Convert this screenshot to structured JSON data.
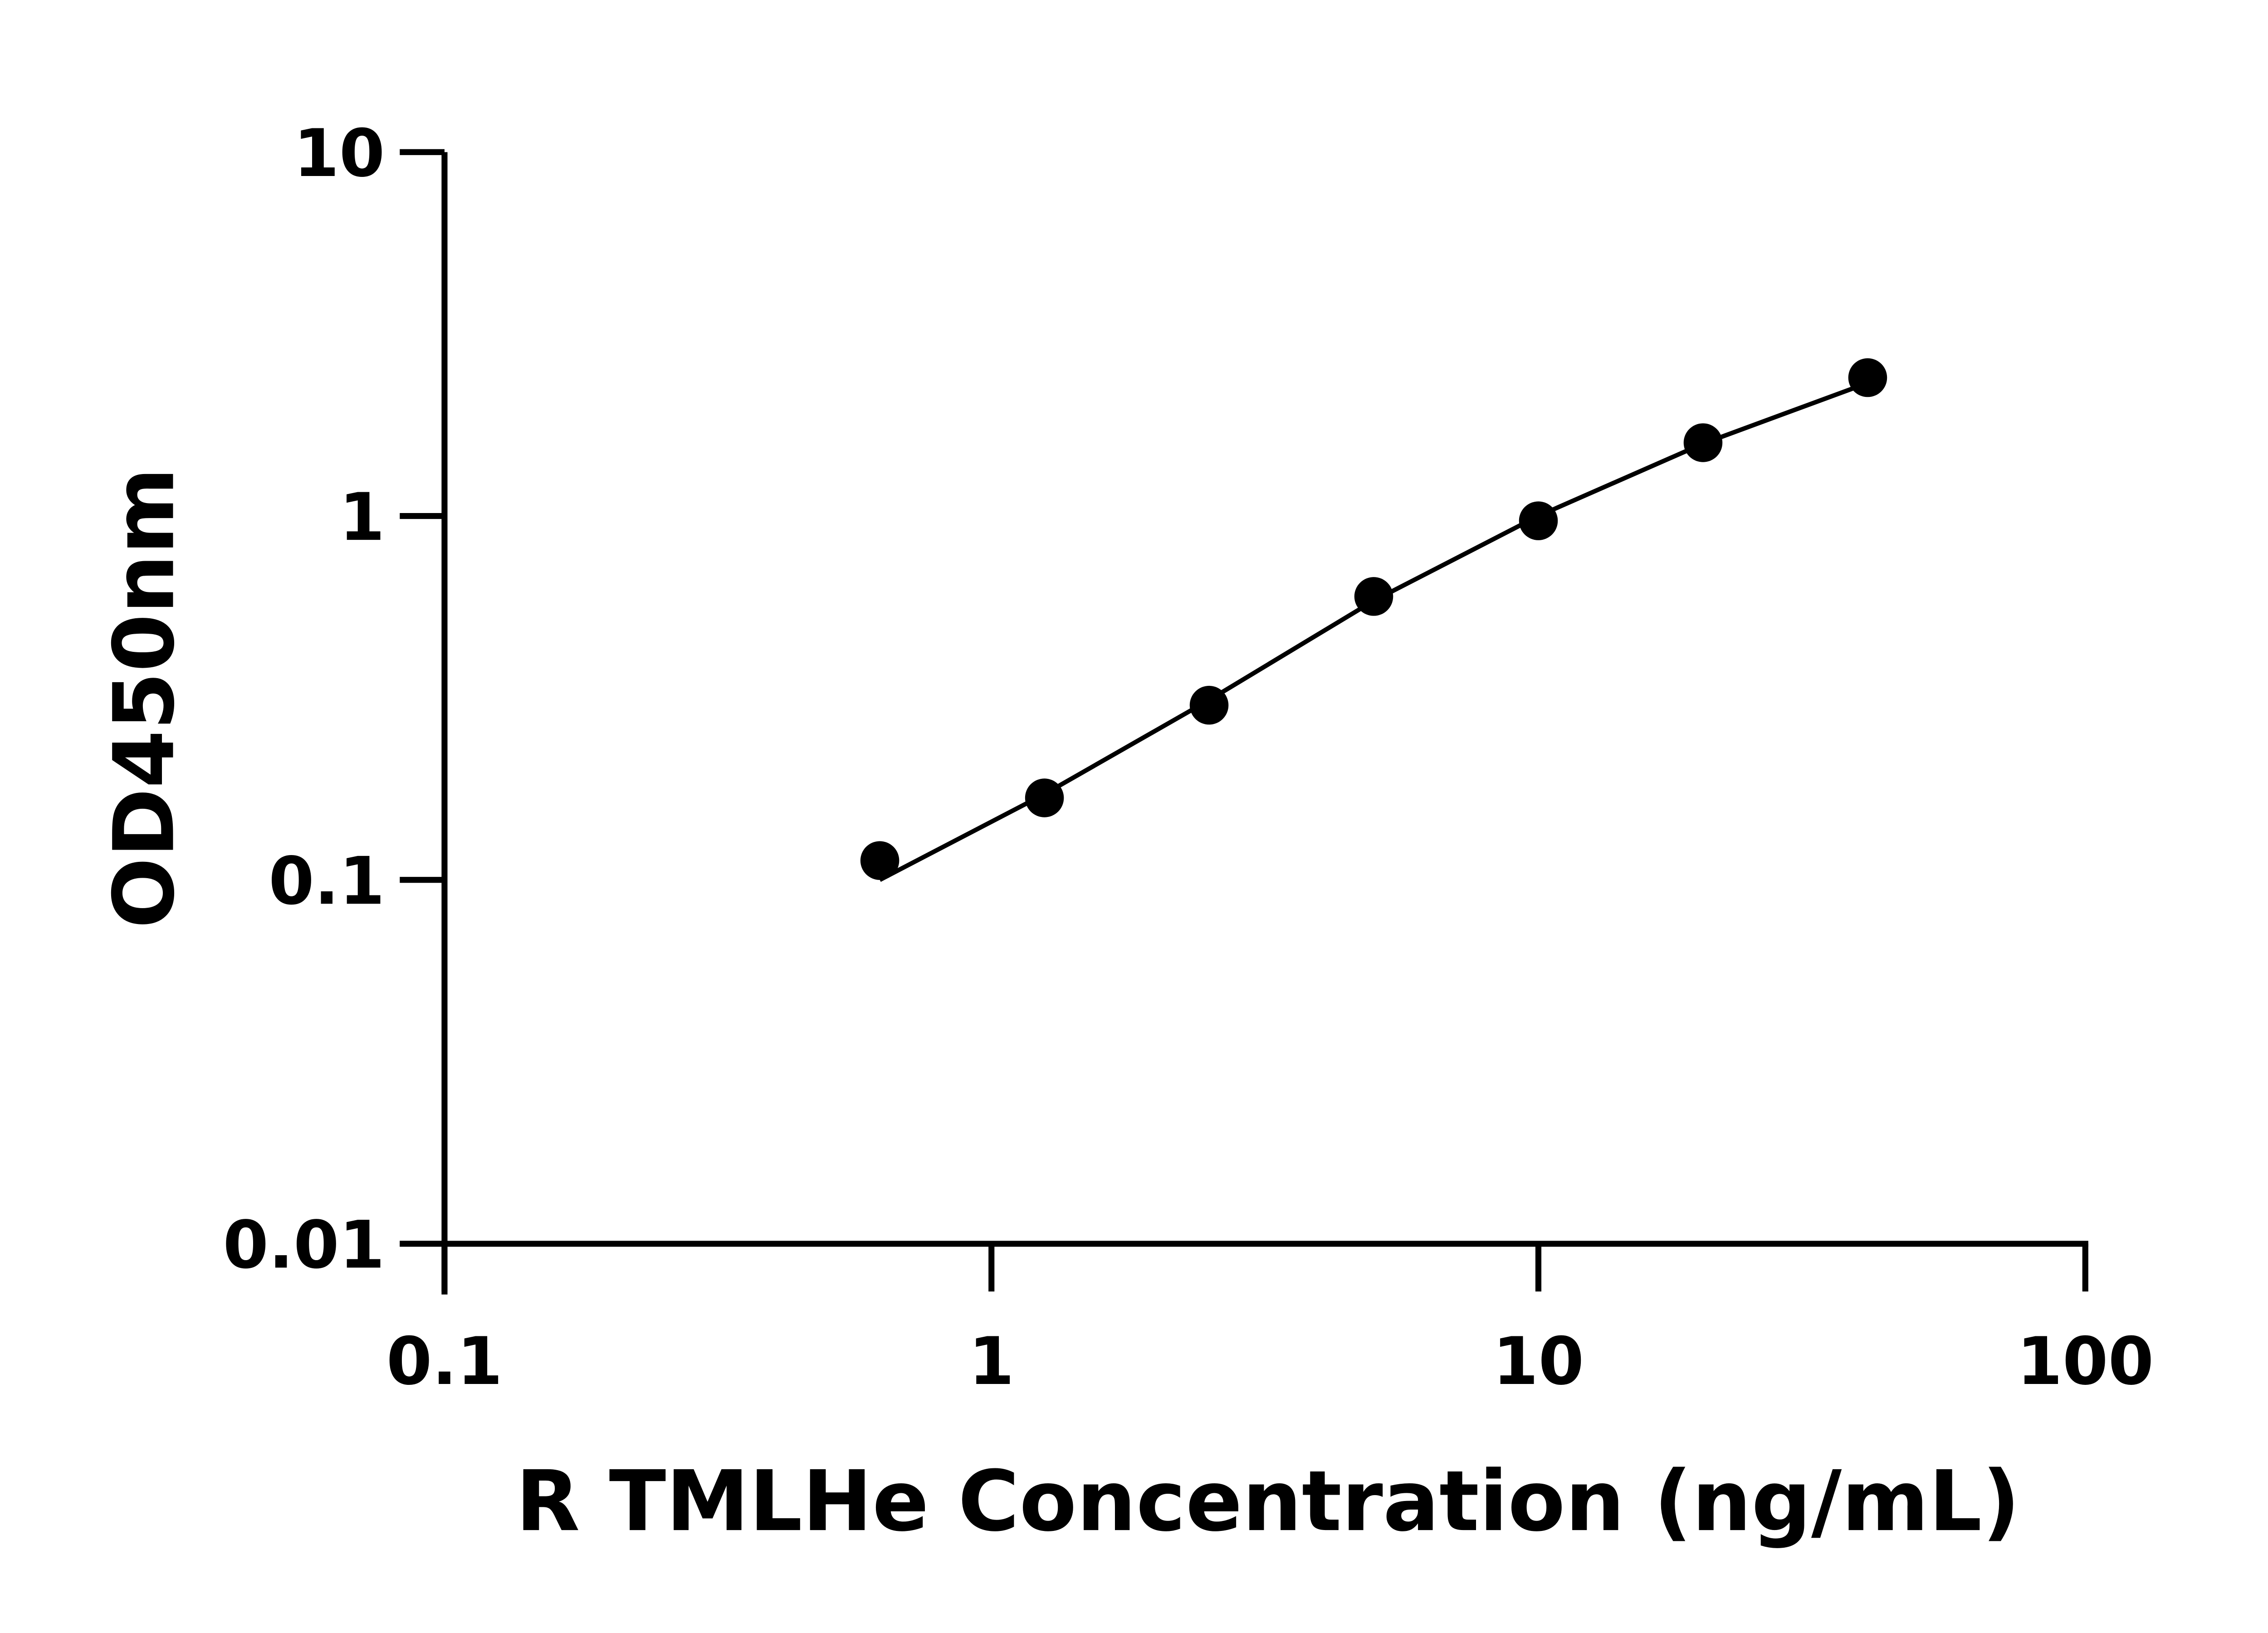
{
  "chart_data": {
    "type": "scatter",
    "title": "",
    "xlabel": "R TMLHe Concentration (ng/mL)",
    "ylabel": "OD450nm",
    "x_scale": "log",
    "y_scale": "log",
    "xlim": [
      0.1,
      100
    ],
    "ylim": [
      0.01,
      10
    ],
    "x_ticks": [
      0.1,
      1,
      10,
      100
    ],
    "x_tick_labels": [
      "0.1",
      "1",
      "10",
      "100"
    ],
    "y_ticks": [
      0.01,
      0.1,
      1,
      10
    ],
    "y_tick_labels": [
      "0.01",
      "0.1",
      "1",
      "10"
    ],
    "grid": false,
    "legend": "none",
    "series": [
      {
        "x": [
          0.625,
          1.25,
          2.5,
          5,
          10,
          20,
          40
        ],
        "y": [
          0.113,
          0.168,
          0.302,
          0.601,
          0.97,
          1.59,
          2.4
        ],
        "marker": "circle",
        "color": "#000000"
      }
    ],
    "fit_curve": {
      "x": [
        0.625,
        1.25,
        2.5,
        5,
        10,
        20,
        40
      ],
      "y": [
        0.1,
        0.172,
        0.312,
        0.585,
        1.0,
        1.58,
        2.32
      ],
      "color": "#000000"
    }
  }
}
